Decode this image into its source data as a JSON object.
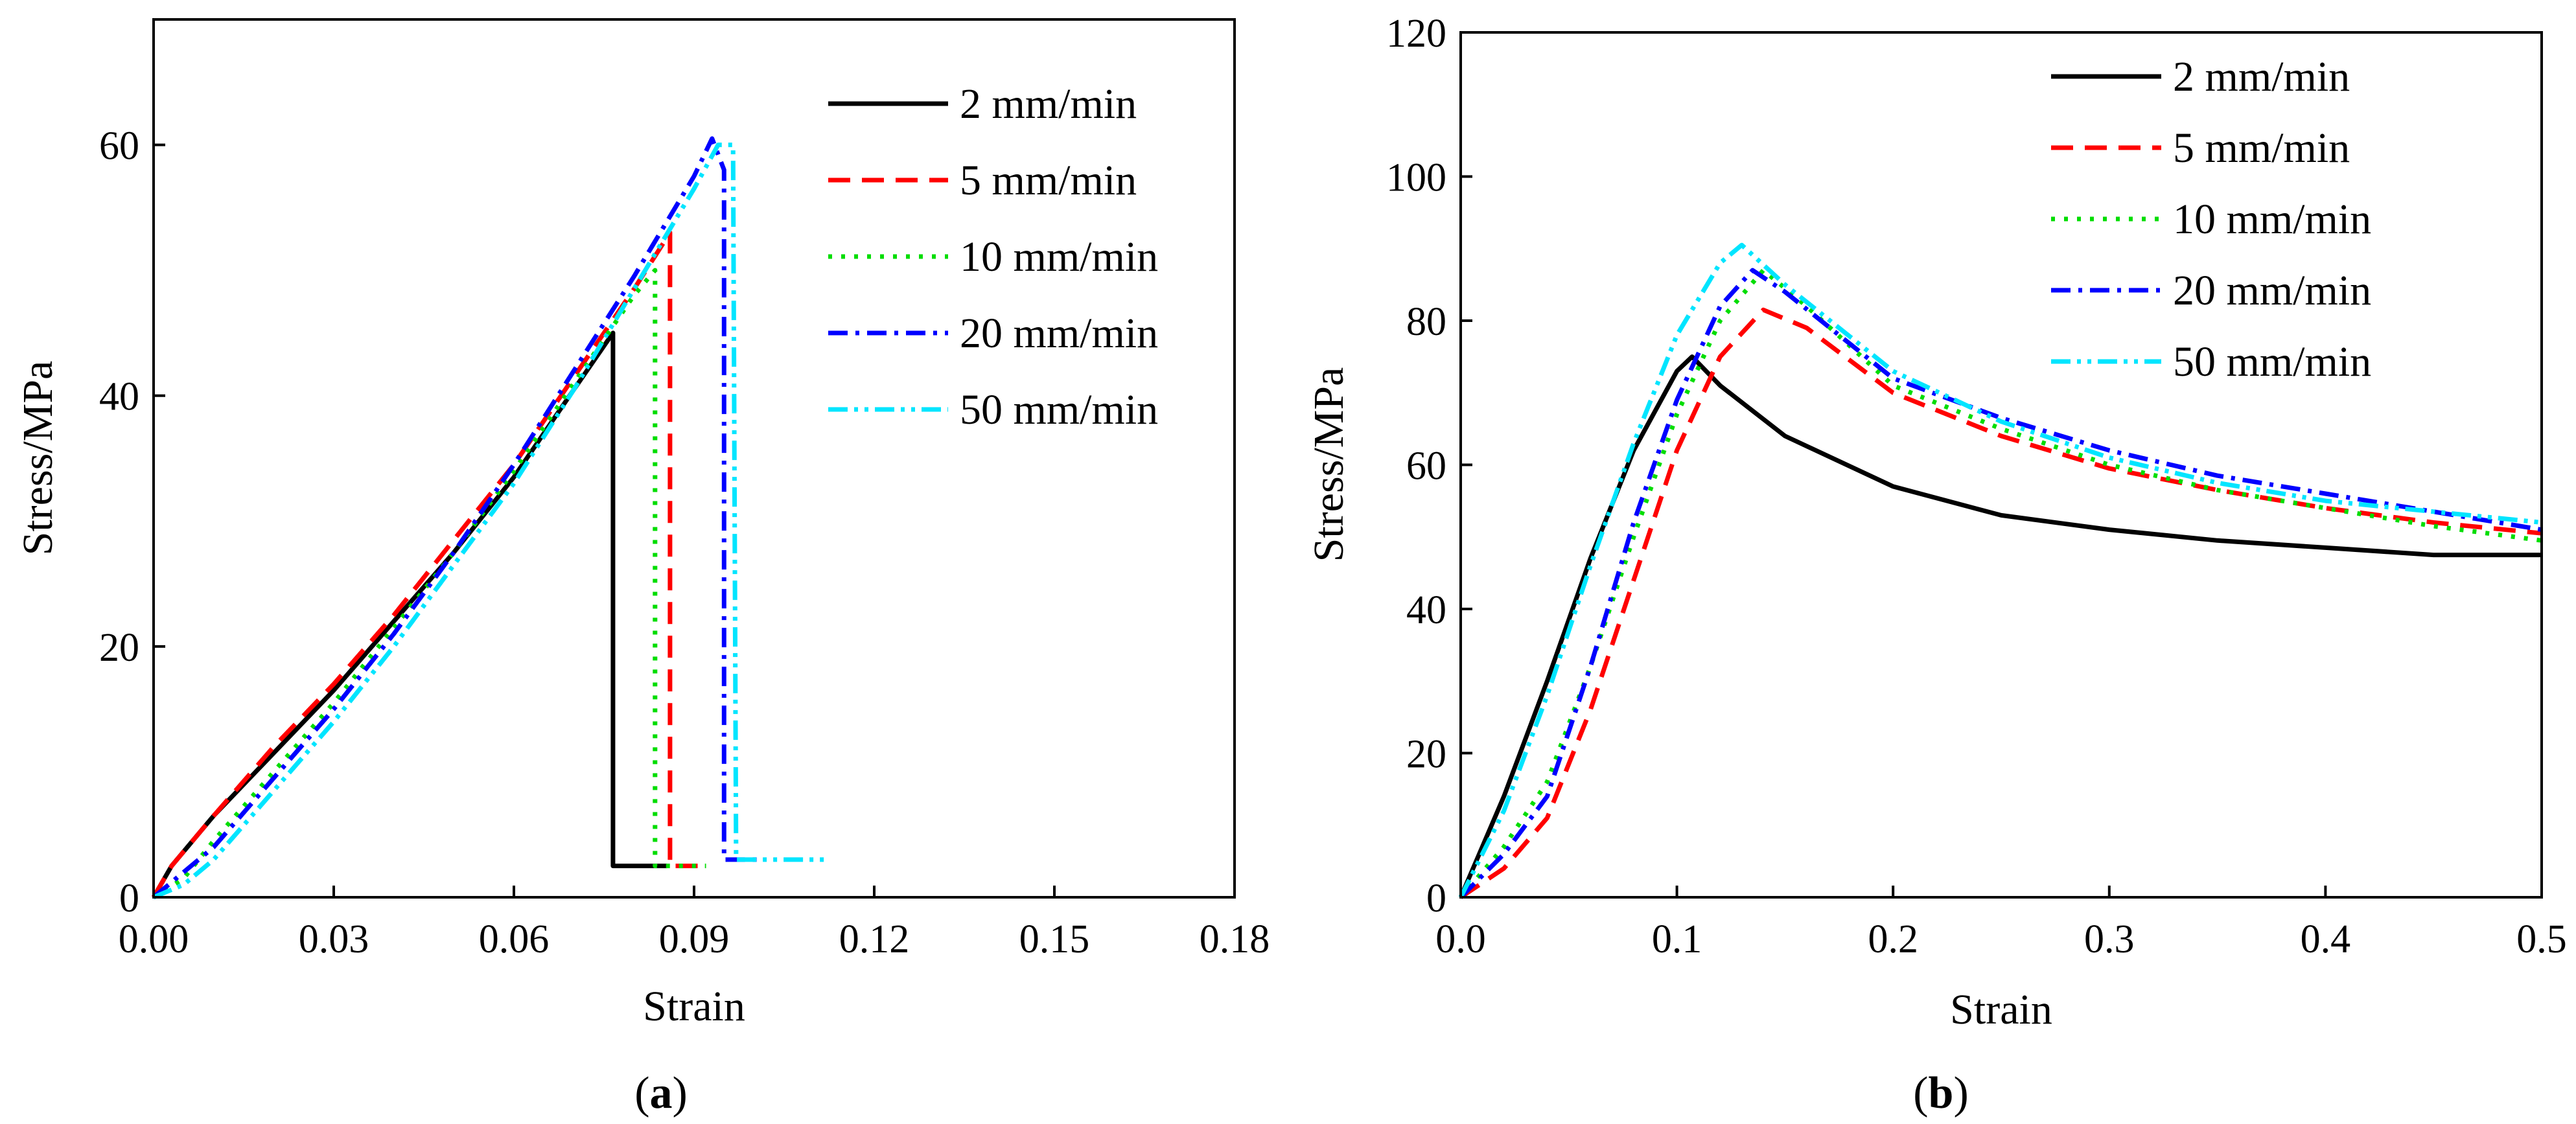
{
  "chart_data": [
    {
      "id": "a",
      "type": "line",
      "caption": {
        "open": "(",
        "letter": "a",
        "close": ")"
      },
      "xlabel": "Strain",
      "ylabel": "Stress/MPa",
      "xlim": [
        0,
        0.18
      ],
      "ylim": [
        0,
        70
      ],
      "xticks": [
        0,
        0.03,
        0.06,
        0.09,
        0.12,
        0.15,
        0.18
      ],
      "xtick_labels": [
        "0.00",
        "0.03",
        "0.06",
        "0.09",
        "0.12",
        "0.15",
        "0.18"
      ],
      "yticks": [
        0,
        20,
        40,
        60
      ],
      "ytick_labels": [
        "0",
        "20",
        "40",
        "60"
      ],
      "grid": false,
      "legend_position": "top-right",
      "series": [
        {
          "name": "2 mm/min",
          "color": "#000000",
          "dash": "solid",
          "x": [
            0,
            0.003,
            0.01,
            0.02,
            0.03,
            0.04,
            0.05,
            0.06,
            0.07,
            0.0765,
            0.0765,
            0.0765,
            0.0855
          ],
          "y": [
            0,
            2.5,
            6.5,
            11.5,
            16.5,
            22,
            27.5,
            33.5,
            40.5,
            45,
            11,
            2.5,
            2.5
          ]
        },
        {
          "name": "5 mm/min",
          "color": "#ff0000",
          "dash": "dashed",
          "x": [
            0,
            0.003,
            0.01,
            0.02,
            0.03,
            0.04,
            0.05,
            0.06,
            0.07,
            0.08,
            0.086,
            0.086,
            0.091
          ],
          "y": [
            0,
            2.5,
            6.5,
            12,
            17,
            22.5,
            28.5,
            34.5,
            41.5,
            48.5,
            53,
            2.5,
            2.5
          ]
        },
        {
          "name": "10 mm/min",
          "color": "#00dd00",
          "dash": "dotted",
          "x": [
            0,
            0.005,
            0.01,
            0.02,
            0.03,
            0.04,
            0.05,
            0.06,
            0.07,
            0.08,
            0.0835,
            0.0835,
            0.092
          ],
          "y": [
            0,
            1.5,
            4.5,
            10,
            15.5,
            21.5,
            27.5,
            34,
            41,
            48,
            50,
            2.5,
            2.5
          ]
        },
        {
          "name": "20 mm/min",
          "color": "#0000ff",
          "dash": "dashdot",
          "x": [
            0,
            0.005,
            0.01,
            0.02,
            0.03,
            0.04,
            0.05,
            0.06,
            0.07,
            0.08,
            0.09,
            0.093,
            0.095,
            0.095,
            0.097,
            0.101
          ],
          "y": [
            0,
            2,
            4,
            9.5,
            15,
            21,
            27.5,
            34.5,
            42,
            49.5,
            57.5,
            60.5,
            58,
            3,
            3,
            3
          ]
        },
        {
          "name": "50 mm/min",
          "color": "#00e5ff",
          "dash": "dashdotdot",
          "x": [
            0,
            0.005,
            0.01,
            0.02,
            0.03,
            0.04,
            0.05,
            0.06,
            0.07,
            0.08,
            0.09,
            0.094,
            0.0965,
            0.097,
            0.112
          ],
          "y": [
            0,
            1,
            3,
            8.5,
            14,
            20,
            26.5,
            33,
            40.5,
            48.5,
            56.5,
            60,
            60,
            3,
            3
          ]
        }
      ]
    },
    {
      "id": "b",
      "type": "line",
      "caption": {
        "open": "(",
        "letter": "b",
        "close": ")"
      },
      "xlabel": "Strain",
      "ylabel": "Stress/MPa",
      "xlim": [
        0,
        0.5
      ],
      "ylim": [
        0,
        120
      ],
      "xticks": [
        0,
        0.1,
        0.2,
        0.3,
        0.4,
        0.5
      ],
      "xtick_labels": [
        "0.0",
        "0.1",
        "0.2",
        "0.3",
        "0.4",
        "0.5"
      ],
      "yticks": [
        0,
        20,
        40,
        60,
        80,
        100,
        120
      ],
      "ytick_labels": [
        "0",
        "20",
        "40",
        "60",
        "80",
        "100",
        "120"
      ],
      "grid": false,
      "legend_position": "top-right",
      "series": [
        {
          "name": "2 mm/min",
          "color": "#000000",
          "dash": "solid",
          "x": [
            0,
            0.02,
            0.04,
            0.06,
            0.08,
            0.1,
            0.107,
            0.12,
            0.15,
            0.2,
            0.25,
            0.3,
            0.35,
            0.4,
            0.45,
            0.5
          ],
          "y": [
            0,
            14,
            30,
            47,
            62,
            73,
            75,
            71,
            64,
            57,
            53,
            51,
            49.5,
            48.5,
            47.5,
            47.5
          ]
        },
        {
          "name": "5 mm/min",
          "color": "#ff0000",
          "dash": "dashed",
          "x": [
            0,
            0.02,
            0.04,
            0.06,
            0.08,
            0.1,
            0.12,
            0.14,
            0.16,
            0.2,
            0.25,
            0.3,
            0.35,
            0.4,
            0.45,
            0.5
          ],
          "y": [
            0,
            4,
            11,
            26,
            44,
            62,
            75,
            81.5,
            79,
            70,
            64,
            59.5,
            56.5,
            54,
            52,
            50.5
          ]
        },
        {
          "name": "10 mm/min",
          "color": "#00dd00",
          "dash": "dotted",
          "x": [
            0,
            0.02,
            0.04,
            0.06,
            0.08,
            0.1,
            0.12,
            0.14,
            0.16,
            0.2,
            0.25,
            0.3,
            0.35,
            0.4,
            0.45,
            0.5
          ],
          "y": [
            0,
            7,
            16,
            32,
            50,
            67,
            80,
            87,
            82,
            71,
            65,
            60,
            56.5,
            54,
            51.5,
            49.5
          ]
        },
        {
          "name": "20 mm/min",
          "color": "#0000ff",
          "dash": "dashdot",
          "x": [
            0,
            0.02,
            0.04,
            0.06,
            0.08,
            0.1,
            0.12,
            0.135,
            0.15,
            0.2,
            0.25,
            0.3,
            0.35,
            0.4,
            0.45,
            0.5
          ],
          "y": [
            0,
            6,
            14,
            32,
            52,
            69,
            82,
            87,
            84,
            72,
            66.5,
            62,
            58.5,
            56,
            53.5,
            51
          ]
        },
        {
          "name": "50 mm/min",
          "color": "#00e5ff",
          "dash": "dashdotdot",
          "x": [
            0,
            0.02,
            0.04,
            0.06,
            0.08,
            0.1,
            0.12,
            0.13,
            0.15,
            0.2,
            0.25,
            0.3,
            0.35,
            0.4,
            0.45,
            0.5
          ],
          "y": [
            0,
            12,
            28,
            46,
            63,
            78,
            88,
            90.5,
            85,
            73,
            66,
            61,
            57.5,
            55,
            53.5,
            52
          ]
        }
      ]
    }
  ]
}
